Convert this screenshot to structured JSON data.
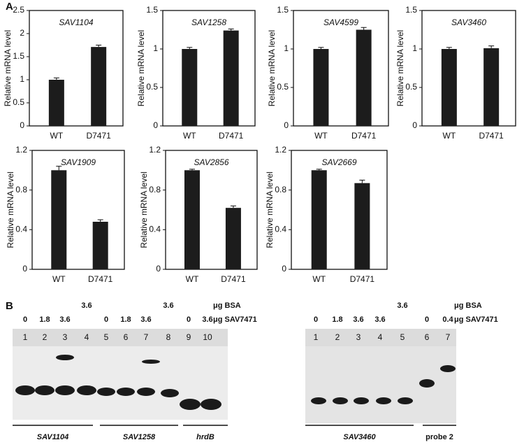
{
  "panel_labels": [
    "A",
    "B"
  ],
  "chart_data": [
    {
      "type": "bar",
      "title": "SAV1104",
      "y_label": "Relative mRNA level",
      "categories": [
        "WT",
        "D7471"
      ],
      "values": [
        1.0,
        1.71
      ],
      "errors": [
        0.04,
        0.04
      ],
      "color": "#1c1c1c",
      "ylim": [
        0,
        2.5
      ],
      "yticks": [
        0,
        0.5,
        1,
        1.5,
        2,
        2.5
      ]
    },
    {
      "type": "bar",
      "title": "SAV1258",
      "y_label": "Relative mRNA level",
      "categories": [
        "WT",
        "D7471"
      ],
      "values": [
        1.0,
        1.24
      ],
      "errors": [
        0.02,
        0.02
      ],
      "color": "#1c1c1c",
      "ylim": [
        0,
        1.5
      ],
      "yticks": [
        0,
        0.5,
        1,
        1.5
      ]
    },
    {
      "type": "bar",
      "title": "SAV4599",
      "y_label": "Relative mRNA level",
      "categories": [
        "WT",
        "D7471"
      ],
      "values": [
        1.0,
        1.25
      ],
      "errors": [
        0.02,
        0.03
      ],
      "color": "#1c1c1c",
      "ylim": [
        0,
        1.5
      ],
      "yticks": [
        0,
        0.5,
        1,
        1.5
      ]
    },
    {
      "type": "bar",
      "title": "SAV3460",
      "y_label": "Relative mRNA level",
      "categories": [
        "WT",
        "D7471"
      ],
      "values": [
        1.0,
        1.01
      ],
      "errors": [
        0.02,
        0.03
      ],
      "color": "#1c1c1c",
      "ylim": [
        0,
        1.5
      ],
      "yticks": [
        0,
        0.5,
        1,
        1.5
      ]
    },
    {
      "type": "bar",
      "title": "SAV1909",
      "y_label": "Relative mRNA level",
      "categories": [
        "WT",
        "D7471"
      ],
      "values": [
        1.0,
        0.48
      ],
      "errors": [
        0.04,
        0.02
      ],
      "color": "#1c1c1c",
      "ylim": [
        0,
        1.2
      ],
      "yticks": [
        0,
        0.4,
        0.8,
        1.2
      ]
    },
    {
      "type": "bar",
      "title": "SAV2856",
      "y_label": "Relative mRNA level",
      "categories": [
        "WT",
        "D7471"
      ],
      "values": [
        1.0,
        0.62
      ],
      "errors": [
        0.01,
        0.02
      ],
      "color": "#1c1c1c",
      "ylim": [
        0,
        1.2
      ],
      "yticks": [
        0,
        0.4,
        0.8,
        1.2
      ]
    },
    {
      "type": "bar",
      "title": "SAV2669",
      "y_label": "Relative mRNA level",
      "categories": [
        "WT",
        "D7471"
      ],
      "values": [
        1.0,
        0.87
      ],
      "errors": [
        0.01,
        0.03
      ],
      "color": "#1c1c1c",
      "ylim": [
        0,
        1.2
      ],
      "yticks": [
        0,
        0.4,
        0.8,
        1.2
      ]
    }
  ],
  "gels": [
    {
      "bsa_label": "μg BSA",
      "protein_label": "μg SAV7471",
      "lanes": [
        "1",
        "2",
        "3",
        "4",
        "5",
        "6",
        "7",
        "8",
        "9",
        "10"
      ],
      "bsa": [
        null,
        null,
        null,
        "3.6",
        null,
        null,
        null,
        "3.6",
        null,
        null
      ],
      "protein": [
        "0",
        "1.8",
        "3.6",
        null,
        "0",
        "1.8",
        "3.6",
        null,
        "0",
        "3.6"
      ],
      "groups": [
        "SAV1104",
        "SAV1258",
        "hrdB"
      ]
    },
    {
      "bsa_label": "μg BSA",
      "protein_label": "μg SAV7471",
      "lanes": [
        "1",
        "2",
        "3",
        "4",
        "5",
        "6",
        "7"
      ],
      "bsa": [
        null,
        null,
        null,
        null,
        "3.6",
        null,
        null
      ],
      "protein": [
        "0",
        "1.8",
        "3.6",
        "3.6",
        null,
        "0",
        "0.4"
      ],
      "groups": [
        "SAV3460",
        "probe 2"
      ]
    }
  ]
}
